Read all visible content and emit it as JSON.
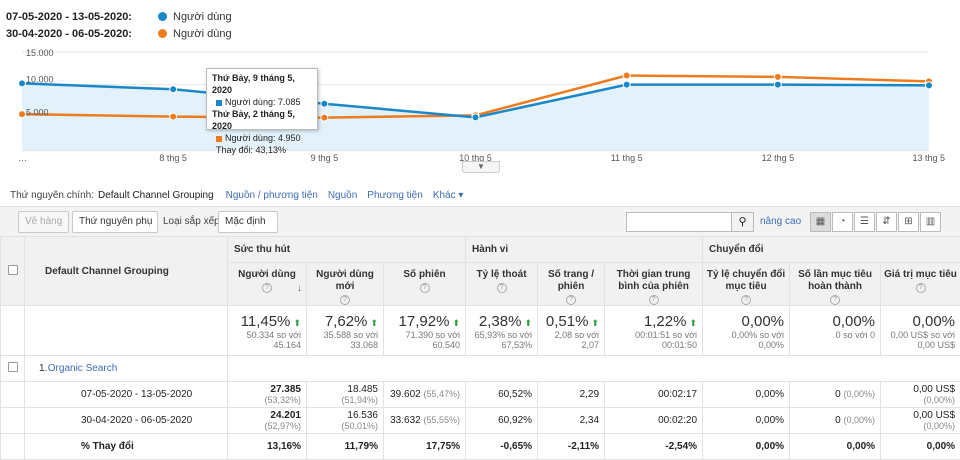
{
  "legend": [
    {
      "range": "07-05-2020 - 13-05-2020:",
      "name": "Người dùng",
      "color": "#1a87c9"
    },
    {
      "range": "30-04-2020 - 06-05-2020:",
      "name": "Người dùng",
      "color": "#ee7c1f"
    }
  ],
  "chart_data": {
    "type": "line",
    "x": [
      "…",
      "8 thg 5",
      "9 thg 5",
      "10 thg 5",
      "11 thg 5",
      "12 thg 5",
      "13 thg 5"
    ],
    "y_ticks": [
      "15.000",
      "10.000",
      "5.000"
    ],
    "ylim": [
      0,
      15000
    ],
    "series": [
      {
        "name": "07-05-2020 - 13-05-2020",
        "color": "#1a87c9",
        "values": [
          10200,
          9300,
          7085,
          5000,
          10000,
          10000,
          9900
        ]
      },
      {
        "name": "30-04-2020 - 06-05-2020",
        "color": "#ee7c1f",
        "values": [
          5500,
          5100,
          4950,
          5300,
          11400,
          11200,
          10500
        ]
      }
    ]
  },
  "tooltip": {
    "date1": "Thứ Bảy, 9 tháng 5, 2020",
    "line1": "Người dùng: 7.085",
    "date2": "Thứ Bảy, 2 tháng 5, 2020",
    "line2": "Người dùng: 4.950",
    "change": "Thay đổi: 43,13%"
  },
  "dimension_bar": {
    "label": "Thứ nguyên chính:",
    "active": "Default Channel Grouping",
    "links": [
      "Nguồn / phương tiện",
      "Nguồn",
      "Phương tiện",
      "Khác ▾"
    ]
  },
  "toolbar": {
    "plot_rows": "Vẽ hàng",
    "secondary_dim": "Thứ nguyên phụ",
    "sort_label": "Loại sắp xếp:",
    "sort_value": "Mặc định",
    "search_placeholder": "",
    "advanced": "nâng cao"
  },
  "table": {
    "dim_header": "Default Channel Grouping",
    "groups": [
      "Sức thu hút",
      "Hành vi",
      "Chuyển đổi"
    ],
    "metrics": [
      "Người dùng",
      "Người dùng mới",
      "Số phiên",
      "Tỷ lệ thoát",
      "Số trang / phiên",
      "Thời gian trung bình của phiên",
      "Tỷ lệ chuyển đổi mục tiêu",
      "Số lần mục tiêu hoàn thành",
      "Giá trị mục tiêu"
    ],
    "totals": [
      {
        "big": "11,45%",
        "up": true,
        "sub1": "50.334 so với",
        "sub2": "45.164"
      },
      {
        "big": "7,62%",
        "up": true,
        "sub1": "35.588 so với",
        "sub2": "33.068"
      },
      {
        "big": "17,92%",
        "up": true,
        "sub1": "71.390 so với",
        "sub2": "60.540"
      },
      {
        "big": "2,38%",
        "up": true,
        "sub1": "65,93% so với",
        "sub2": "67,53%"
      },
      {
        "big": "0,51%",
        "up": true,
        "sub1": "2,08 so với",
        "sub2": "2,07"
      },
      {
        "big": "1,22%",
        "up": true,
        "sub1": "00:01:51 so với",
        "sub2": "00:01:50"
      },
      {
        "big": "0,00%",
        "up": false,
        "sub1": "0,00% so với 0,00%",
        "sub2": ""
      },
      {
        "big": "0,00%",
        "up": false,
        "sub1": "0 so với 0",
        "sub2": ""
      },
      {
        "big": "0,00%",
        "up": false,
        "sub1": "0,00 US$ so với",
        "sub2": "0,00 US$"
      }
    ],
    "group_row": {
      "num": "1.",
      "label": "Organic Search"
    },
    "rows": [
      {
        "label": "07-05-2020 - 13-05-2020",
        "cells": [
          {
            "v": "27.385",
            "p": "(53,32%)",
            "bold": true
          },
          {
            "v": "18.485",
            "p": "(51,94%)"
          },
          {
            "v": "39.602",
            "p": "(55,47%)"
          },
          {
            "v": "60,52%",
            "p": ""
          },
          {
            "v": "2,29",
            "p": ""
          },
          {
            "v": "00:02:17",
            "p": ""
          },
          {
            "v": "0,00%",
            "p": ""
          },
          {
            "v": "0",
            "p": "(0,00%)"
          },
          {
            "v": "0,00 US$",
            "p": "(0,00%)"
          }
        ]
      },
      {
        "label": "30-04-2020 - 06-05-2020",
        "cells": [
          {
            "v": "24.201",
            "p": "(52,97%)",
            "bold": true
          },
          {
            "v": "16.536",
            "p": "(50,01%)"
          },
          {
            "v": "33.632",
            "p": "(55,55%)"
          },
          {
            "v": "60,92%",
            "p": ""
          },
          {
            "v": "2,34",
            "p": ""
          },
          {
            "v": "00:02:20",
            "p": ""
          },
          {
            "v": "0,00%",
            "p": ""
          },
          {
            "v": "0",
            "p": "(0,00%)"
          },
          {
            "v": "0,00 US$",
            "p": "(0,00%)"
          }
        ]
      },
      {
        "label": "% Thay đổi",
        "bold": true,
        "cells": [
          {
            "v": "13,16%",
            "p": "",
            "bold": true
          },
          {
            "v": "11,79%",
            "p": "",
            "bold": true
          },
          {
            "v": "17,75%",
            "p": "",
            "bold": true
          },
          {
            "v": "-0,65%",
            "p": "",
            "bold": true
          },
          {
            "v": "-2,11%",
            "p": "",
            "bold": true
          },
          {
            "v": "-2,54%",
            "p": "",
            "bold": true
          },
          {
            "v": "0,00%",
            "p": "",
            "bold": true
          },
          {
            "v": "0,00%",
            "p": "",
            "bold": true
          },
          {
            "v": "0,00%",
            "p": "",
            "bold": true
          }
        ]
      }
    ]
  }
}
